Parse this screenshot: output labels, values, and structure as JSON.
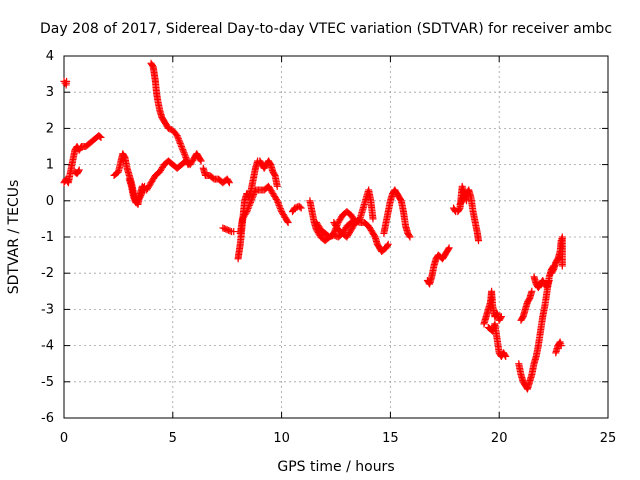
{
  "chart_data": {
    "type": "scatter",
    "title": "Day 208 of 2017, Sidereal Day-to-day VTEC variation (SDTVAR) for receiver ambc",
    "xlabel": "GPS time / hours",
    "ylabel": "SDTVAR / TECUs",
    "xlim": [
      0,
      25
    ],
    "ylim": [
      -6,
      4
    ],
    "xticks": [
      0,
      5,
      10,
      15,
      20,
      25
    ],
    "yticks": [
      -6,
      -5,
      -4,
      -3,
      -2,
      -1,
      0,
      1,
      2,
      3,
      4
    ],
    "grid": true,
    "marker": "plus",
    "color": "#ff0000",
    "segments": [
      [
        [
          0.0,
          3.3
        ],
        [
          0.05,
          3.25
        ],
        [
          0.1,
          3.2
        ],
        [
          0.12,
          3.3
        ]
      ],
      [
        [
          0.0,
          0.5
        ],
        [
          0.1,
          0.6
        ],
        [
          0.2,
          0.5
        ],
        [
          0.3,
          0.8
        ],
        [
          0.4,
          1.1
        ],
        [
          0.5,
          1.4
        ],
        [
          0.6,
          1.5
        ],
        [
          0.7,
          1.4
        ],
        [
          0.8,
          1.5
        ],
        [
          1.0,
          1.5
        ],
        [
          1.2,
          1.6
        ],
        [
          1.4,
          1.7
        ],
        [
          1.6,
          1.8
        ],
        [
          1.7,
          1.75
        ]
      ],
      [
        [
          0.5,
          0.8
        ],
        [
          0.6,
          0.75
        ],
        [
          0.7,
          0.85
        ]
      ],
      [
        [
          2.3,
          0.7
        ],
        [
          2.5,
          0.8
        ],
        [
          2.7,
          1.3
        ],
        [
          2.8,
          1.2
        ],
        [
          2.9,
          0.9
        ],
        [
          3.0,
          0.7
        ],
        [
          3.1,
          0.5
        ],
        [
          3.2,
          0.2
        ],
        [
          3.3,
          0.0
        ],
        [
          3.4,
          -0.1
        ],
        [
          3.5,
          0.2
        ],
        [
          3.6,
          0.4
        ],
        [
          3.7,
          0.3
        ],
        [
          3.8,
          0.3
        ],
        [
          4.0,
          0.5
        ],
        [
          4.2,
          0.7
        ],
        [
          4.4,
          0.8
        ],
        [
          4.6,
          1.0
        ],
        [
          4.8,
          1.1
        ],
        [
          5.0,
          1.0
        ],
        [
          5.2,
          0.9
        ],
        [
          5.4,
          1.0
        ],
        [
          5.6,
          1.1
        ],
        [
          5.8,
          1.0
        ],
        [
          6.0,
          1.2
        ],
        [
          6.1,
          1.3
        ],
        [
          6.2,
          1.2
        ],
        [
          6.3,
          1.1
        ]
      ],
      [
        [
          3.0,
          0.6
        ],
        [
          3.1,
          0.4
        ],
        [
          3.2,
          0.1
        ],
        [
          3.3,
          -0.05
        ],
        [
          3.5,
          0.1
        ],
        [
          3.7,
          0.4
        ]
      ],
      [
        [
          4.0,
          3.8
        ],
        [
          4.1,
          3.7
        ],
        [
          4.15,
          3.5
        ],
        [
          4.2,
          3.3
        ],
        [
          4.25,
          3.0
        ],
        [
          4.3,
          2.8
        ],
        [
          4.4,
          2.5
        ],
        [
          4.5,
          2.3
        ],
        [
          4.6,
          2.2
        ],
        [
          4.7,
          2.1
        ],
        [
          4.8,
          2.0
        ],
        [
          5.0,
          1.95
        ],
        [
          5.2,
          1.8
        ],
        [
          5.4,
          1.5
        ],
        [
          5.6,
          1.2
        ],
        [
          5.7,
          1.0
        ]
      ],
      [
        [
          6.4,
          0.9
        ],
        [
          6.5,
          0.7
        ],
        [
          6.7,
          0.7
        ],
        [
          6.9,
          0.6
        ],
        [
          7.1,
          0.6
        ],
        [
          7.3,
          0.5
        ],
        [
          7.5,
          0.6
        ],
        [
          7.6,
          0.5
        ]
      ],
      [
        [
          7.3,
          -0.75
        ],
        [
          7.5,
          -0.8
        ],
        [
          7.7,
          -0.85
        ],
        [
          7.8,
          -0.85
        ]
      ],
      [
        [
          8.0,
          -1.6
        ],
        [
          8.05,
          -1.4
        ],
        [
          8.1,
          -1.2
        ],
        [
          8.15,
          -0.9
        ],
        [
          8.2,
          -0.6
        ],
        [
          8.25,
          -0.3
        ],
        [
          8.3,
          0.0
        ],
        [
          8.4,
          0.2
        ],
        [
          8.5,
          0.1
        ],
        [
          8.6,
          0.3
        ],
        [
          8.7,
          0.6
        ],
        [
          8.8,
          0.9
        ],
        [
          8.9,
          1.1
        ],
        [
          9.0,
          1.1
        ],
        [
          9.1,
          1.0
        ],
        [
          9.2,
          0.9
        ],
        [
          9.3,
          1.0
        ],
        [
          9.4,
          1.1
        ],
        [
          9.5,
          1.0
        ],
        [
          9.6,
          0.8
        ],
        [
          9.7,
          0.7
        ],
        [
          9.8,
          0.4
        ]
      ],
      [
        [
          8.1,
          -0.9
        ],
        [
          8.2,
          -0.5
        ],
        [
          8.4,
          -0.3
        ],
        [
          8.6,
          0.0
        ],
        [
          8.8,
          0.3
        ],
        [
          9.0,
          0.3
        ],
        [
          9.2,
          0.3
        ],
        [
          9.4,
          0.4
        ],
        [
          9.6,
          0.2
        ],
        [
          9.8,
          0.0
        ],
        [
          10.0,
          -0.3
        ],
        [
          10.2,
          -0.5
        ],
        [
          10.3,
          -0.6
        ]
      ],
      [
        [
          10.5,
          -0.3
        ],
        [
          10.6,
          -0.2
        ],
        [
          10.8,
          -0.15
        ],
        [
          10.9,
          -0.2
        ]
      ],
      [
        [
          11.3,
          0.0
        ],
        [
          11.4,
          -0.3
        ],
        [
          11.5,
          -0.6
        ],
        [
          11.6,
          -0.8
        ],
        [
          11.8,
          -1.0
        ],
        [
          12.0,
          -1.1
        ],
        [
          12.2,
          -1.0
        ],
        [
          12.4,
          -0.9
        ],
        [
          12.6,
          -0.6
        ],
        [
          12.8,
          -0.4
        ],
        [
          13.0,
          -0.3
        ],
        [
          13.2,
          -0.4
        ],
        [
          13.4,
          -0.6
        ],
        [
          13.6,
          -0.5
        ],
        [
          13.8,
          -0.1
        ],
        [
          14.0,
          0.3
        ],
        [
          14.1,
          0.0
        ],
        [
          14.2,
          -0.5
        ]
      ],
      [
        [
          11.6,
          -0.6
        ],
        [
          11.8,
          -0.8
        ],
        [
          12.0,
          -0.9
        ],
        [
          12.2,
          -1.0
        ],
        [
          12.4,
          -0.95
        ],
        [
          12.6,
          -1.0
        ],
        [
          12.8,
          -0.9
        ],
        [
          13.0,
          -0.7
        ],
        [
          13.2,
          -0.6
        ],
        [
          13.4,
          -0.55
        ],
        [
          13.6,
          -0.6
        ],
        [
          13.8,
          -0.6
        ],
        [
          14.0,
          -0.7
        ],
        [
          14.2,
          -0.9
        ],
        [
          14.3,
          -1.0
        ],
        [
          14.4,
          -1.2
        ],
        [
          14.5,
          -1.3
        ],
        [
          14.6,
          -1.4
        ],
        [
          14.8,
          -1.3
        ],
        [
          14.9,
          -1.2
        ]
      ],
      [
        [
          12.4,
          -0.6
        ],
        [
          12.6,
          -0.8
        ],
        [
          12.8,
          -0.9
        ],
        [
          13.0,
          -1.0
        ],
        [
          13.2,
          -0.8
        ],
        [
          13.4,
          -0.6
        ]
      ],
      [
        [
          14.7,
          -0.9
        ],
        [
          14.8,
          -0.6
        ],
        [
          14.9,
          -0.3
        ],
        [
          15.0,
          0.0
        ],
        [
          15.1,
          0.2
        ],
        [
          15.2,
          0.3
        ],
        [
          15.3,
          0.2
        ],
        [
          15.4,
          0.1
        ],
        [
          15.5,
          0.0
        ],
        [
          15.6,
          -0.3
        ],
        [
          15.7,
          -0.7
        ],
        [
          15.8,
          -0.9
        ],
        [
          15.9,
          -1.0
        ]
      ],
      [
        [
          16.7,
          -2.2
        ],
        [
          16.8,
          -2.3
        ],
        [
          16.9,
          -2.1
        ],
        [
          17.0,
          -1.8
        ],
        [
          17.1,
          -1.6
        ],
        [
          17.2,
          -1.5
        ],
        [
          17.4,
          -1.6
        ],
        [
          17.5,
          -1.5
        ],
        [
          17.6,
          -1.4
        ],
        [
          17.7,
          -1.3
        ]
      ],
      [
        [
          17.9,
          -0.2
        ],
        [
          18.0,
          -0.3
        ],
        [
          18.1,
          -0.3
        ],
        [
          18.2,
          -0.2
        ],
        [
          18.3,
          0.4
        ],
        [
          18.35,
          0.3
        ],
        [
          18.4,
          0.1
        ],
        [
          18.5,
          0.2
        ],
        [
          18.6,
          0.3
        ],
        [
          18.7,
          0.1
        ],
        [
          18.8,
          -0.3
        ],
        [
          18.9,
          -0.6
        ],
        [
          19.0,
          -0.9
        ],
        [
          19.05,
          -1.1
        ]
      ],
      [
        [
          18.2,
          -0.1
        ],
        [
          18.3,
          0.0
        ],
        [
          18.4,
          0.2
        ],
        [
          18.5,
          0.0
        ]
      ],
      [
        [
          19.3,
          -3.4
        ],
        [
          19.4,
          -3.2
        ],
        [
          19.5,
          -3.0
        ],
        [
          19.6,
          -2.8
        ],
        [
          19.65,
          -2.5
        ],
        [
          19.7,
          -2.9
        ],
        [
          19.8,
          -3.2
        ],
        [
          19.9,
          -3.1
        ],
        [
          20.0,
          -3.3
        ],
        [
          20.1,
          -3.2
        ]
      ],
      [
        [
          19.5,
          -3.5
        ],
        [
          19.7,
          -3.6
        ],
        [
          19.8,
          -3.4
        ],
        [
          19.9,
          -3.8
        ],
        [
          20.0,
          -4.2
        ],
        [
          20.1,
          -4.3
        ],
        [
          20.2,
          -4.2
        ],
        [
          20.3,
          -4.3
        ]
      ],
      [
        [
          20.9,
          -4.5
        ],
        [
          21.0,
          -4.8
        ],
        [
          21.1,
          -5.0
        ],
        [
          21.2,
          -5.1
        ],
        [
          21.3,
          -5.2
        ],
        [
          21.4,
          -5.0
        ],
        [
          21.5,
          -4.8
        ],
        [
          21.6,
          -4.5
        ],
        [
          21.7,
          -4.3
        ],
        [
          21.8,
          -4.0
        ],
        [
          21.9,
          -3.6
        ],
        [
          22.0,
          -3.2
        ],
        [
          22.1,
          -2.9
        ],
        [
          22.2,
          -2.5
        ],
        [
          22.3,
          -2.1
        ],
        [
          22.4,
          -1.9
        ],
        [
          22.5,
          -1.8
        ]
      ],
      [
        [
          21.0,
          -3.3
        ],
        [
          21.1,
          -3.2
        ],
        [
          21.2,
          -3.0
        ],
        [
          21.3,
          -2.8
        ],
        [
          21.4,
          -2.7
        ],
        [
          21.5,
          -2.5
        ]
      ],
      [
        [
          21.6,
          -2.1
        ],
        [
          21.7,
          -2.3
        ],
        [
          21.8,
          -2.4
        ],
        [
          21.9,
          -2.3
        ],
        [
          22.0,
          -2.2
        ],
        [
          22.2,
          -2.4
        ],
        [
          22.3,
          -2.2
        ]
      ],
      [
        [
          22.4,
          -2.0
        ],
        [
          22.5,
          -1.9
        ],
        [
          22.6,
          -1.7
        ],
        [
          22.7,
          -1.6
        ],
        [
          22.8,
          -1.4
        ],
        [
          22.85,
          -1.1
        ],
        [
          22.9,
          -1.0
        ],
        [
          22.9,
          -1.8
        ]
      ],
      [
        [
          22.6,
          -4.2
        ],
        [
          22.7,
          -4.0
        ],
        [
          22.8,
          -3.9
        ],
        [
          22.85,
          -4.0
        ]
      ]
    ]
  }
}
